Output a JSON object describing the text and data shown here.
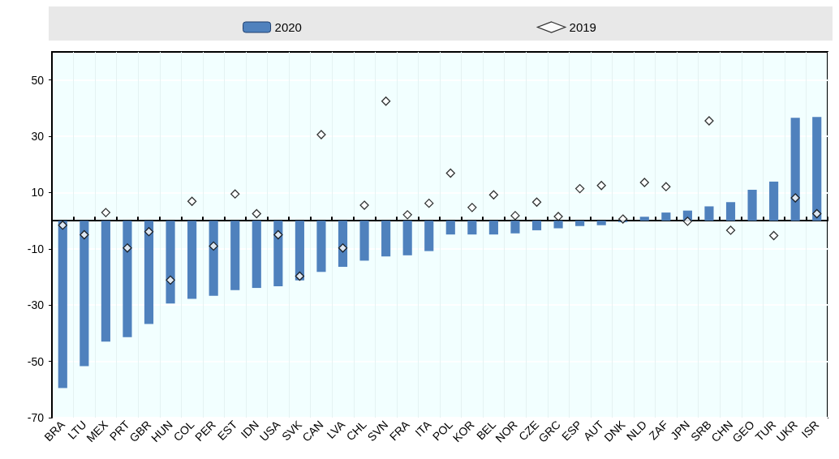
{
  "chart_data": {
    "type": "bar",
    "categories": [
      "BRA",
      "LTU",
      "MEX",
      "PRT",
      "GBR",
      "HUN",
      "COL",
      "PER",
      "EST",
      "IDN",
      "USA",
      "SVK",
      "CAN",
      "LVA",
      "CHL",
      "SVN",
      "FRA",
      "ITA",
      "POL",
      "KOR",
      "BEL",
      "NOR",
      "CZE",
      "GRC",
      "ESP",
      "AUT",
      "DNK",
      "NLD",
      "ZAF",
      "JPN",
      "SRB",
      "CHN",
      "GEO",
      "TUR",
      "UKR",
      "ISR"
    ],
    "series": [
      {
        "name": "2020",
        "color": "#4f81bd",
        "values": [
          -59.5,
          -51.7,
          -43.0,
          -41.4,
          -36.7,
          -29.4,
          -27.8,
          -26.7,
          -24.7,
          -23.9,
          -23.3,
          -21.2,
          -18.2,
          -16.4,
          -14.2,
          -12.7,
          -12.3,
          -10.8,
          -4.9,
          -4.9,
          -4.9,
          -4.5,
          -3.4,
          -2.7,
          -1.9,
          -1.6,
          -0.5,
          1.4,
          2.9,
          3.6,
          5.1,
          6.6,
          11.0,
          13.9,
          36.6,
          36.9
        ]
      },
      {
        "name": "2019",
        "type": "scatter",
        "marker": "diamond",
        "color": "#ffffff",
        "values": [
          -1.6,
          -5.0,
          2.9,
          -9.7,
          -3.9,
          -21.1,
          6.9,
          -9.0,
          9.5,
          2.5,
          -5.0,
          -19.7,
          30.6,
          -9.7,
          5.5,
          42.5,
          2.1,
          6.2,
          16.9,
          4.7,
          9.2,
          1.8,
          6.6,
          1.5,
          11.4,
          12.5,
          0.6,
          13.6,
          12.1,
          -0.2,
          35.5,
          -3.4,
          null,
          -5.3,
          8.1,
          2.5
        ]
      }
    ],
    "ylim": [
      -70,
      60
    ],
    "yticks": [
      -70,
      -50,
      -30,
      -10,
      10,
      30,
      50
    ],
    "grid": true,
    "legend": "top"
  }
}
